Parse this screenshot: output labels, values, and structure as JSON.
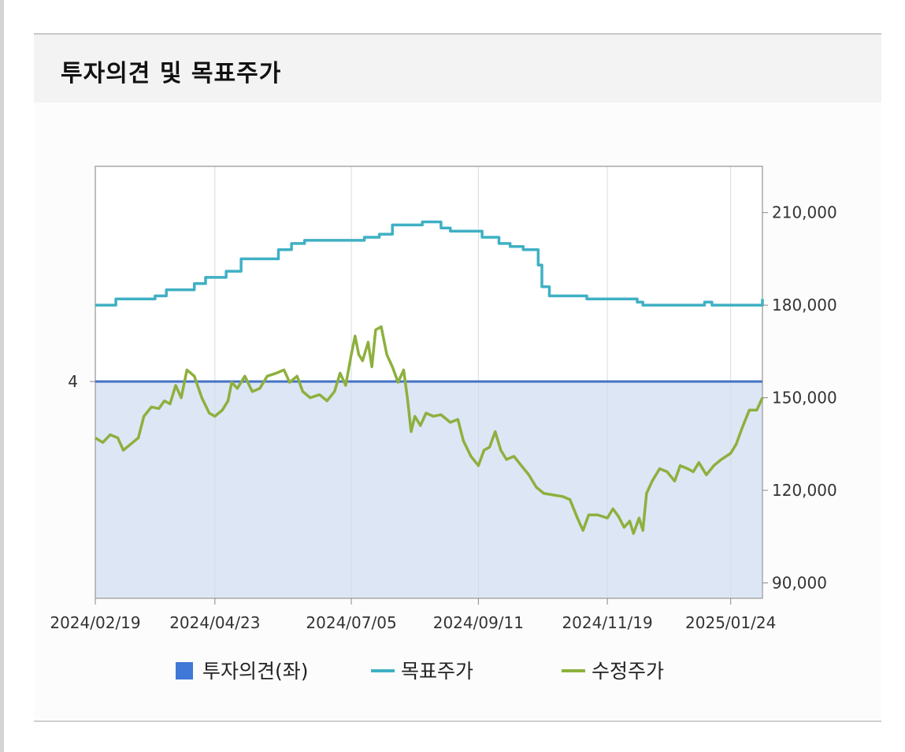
{
  "panel": {
    "title": "투자의견 및 목표주가"
  },
  "colors": {
    "opinion_fill": "#dde6f5",
    "opinion_line": "#4472c4",
    "opinion_legend": "#3f78d6",
    "target": "#3fb0c4",
    "price": "#8db03e",
    "grid": "#d6dbe2",
    "frame": "#a9a9a9"
  },
  "chart_data": {
    "type": "line",
    "x_ticks": [
      "2024/02/19",
      "2024/04/23",
      "2024/07/05",
      "2024/09/11",
      "2024/11/19",
      "2025/01/24"
    ],
    "x_range": [
      "2024/02/19",
      "2025/02/10"
    ],
    "y_left": {
      "ticks": [
        "4"
      ],
      "series": "투자의견(좌)",
      "value": 4
    },
    "y_right": {
      "ticks": [
        "210,000",
        "180,000",
        "150,000",
        "120,000",
        "90,000"
      ],
      "ylim": [
        85000,
        225000
      ]
    },
    "legend": [
      {
        "key": "opinion",
        "label": "투자의견(좌)",
        "icon": "square"
      },
      {
        "key": "target",
        "label": "목표주가",
        "icon": "line"
      },
      {
        "key": "price",
        "label": "수정주가",
        "icon": "line"
      }
    ],
    "series": [
      {
        "name": "목표주가",
        "key": "target",
        "step": true,
        "points": [
          [
            "2024/02/19",
            180000
          ],
          [
            "2024/02/26",
            180000
          ],
          [
            "2024/03/01",
            182000
          ],
          [
            "2024/03/15",
            182000
          ],
          [
            "2024/03/22",
            183000
          ],
          [
            "2024/03/28",
            185000
          ],
          [
            "2024/04/05",
            185000
          ],
          [
            "2024/04/12",
            187000
          ],
          [
            "2024/04/18",
            189000
          ],
          [
            "2024/04/23",
            189000
          ],
          [
            "2024/04/29",
            191000
          ],
          [
            "2024/05/06",
            191000
          ],
          [
            "2024/05/07",
            195000
          ],
          [
            "2024/05/20",
            195000
          ],
          [
            "2024/05/27",
            198000
          ],
          [
            "2024/06/03",
            200000
          ],
          [
            "2024/06/10",
            201000
          ],
          [
            "2024/06/28",
            201000
          ],
          [
            "2024/07/05",
            201000
          ],
          [
            "2024/07/12",
            202000
          ],
          [
            "2024/07/20",
            203000
          ],
          [
            "2024/07/26",
            203000
          ],
          [
            "2024/07/27",
            206000
          ],
          [
            "2024/08/10",
            206000
          ],
          [
            "2024/08/12",
            207000
          ],
          [
            "2024/08/20",
            207000
          ],
          [
            "2024/08/22",
            205000
          ],
          [
            "2024/08/27",
            204000
          ],
          [
            "2024/09/11",
            204000
          ],
          [
            "2024/09/13",
            202000
          ],
          [
            "2024/09/22",
            200000
          ],
          [
            "2024/09/28",
            199000
          ],
          [
            "2024/10/05",
            198000
          ],
          [
            "2024/10/10",
            198000
          ],
          [
            "2024/10/13",
            193000
          ],
          [
            "2024/10/15",
            186000
          ],
          [
            "2024/10/17",
            186000
          ],
          [
            "2024/10/19",
            183000
          ],
          [
            "2024/11/05",
            183000
          ],
          [
            "2024/11/08",
            182000
          ],
          [
            "2024/11/19",
            182000
          ],
          [
            "2024/12/02",
            182000
          ],
          [
            "2024/12/05",
            181000
          ],
          [
            "2024/12/08",
            180000
          ],
          [
            "2024/12/18",
            180000
          ],
          [
            "2024/12/25",
            180000
          ],
          [
            "2025/01/05",
            180000
          ],
          [
            "2025/01/10",
            181000
          ],
          [
            "2025/01/14",
            180000
          ],
          [
            "2025/01/24",
            180000
          ],
          [
            "2025/02/04",
            180000
          ],
          [
            "2025/02/10",
            182000
          ]
        ]
      },
      {
        "name": "수정주가",
        "key": "price",
        "step": false,
        "points": [
          [
            "2024/02/19",
            137000
          ],
          [
            "2024/02/23",
            135500
          ],
          [
            "2024/02/27",
            138000
          ],
          [
            "2024/03/02",
            137000
          ],
          [
            "2024/03/05",
            133000
          ],
          [
            "2024/03/09",
            135000
          ],
          [
            "2024/03/13",
            137000
          ],
          [
            "2024/03/16",
            144000
          ],
          [
            "2024/03/20",
            147000
          ],
          [
            "2024/03/24",
            146500
          ],
          [
            "2024/03/27",
            149000
          ],
          [
            "2024/03/30",
            148000
          ],
          [
            "2024/04/02",
            154000
          ],
          [
            "2024/04/05",
            150000
          ],
          [
            "2024/04/08",
            159000
          ],
          [
            "2024/04/12",
            157000
          ],
          [
            "2024/04/16",
            150000
          ],
          [
            "2024/04/20",
            145000
          ],
          [
            "2024/04/23",
            144000
          ],
          [
            "2024/04/27",
            146000
          ],
          [
            "2024/04/30",
            149000
          ],
          [
            "2024/05/02",
            155000
          ],
          [
            "2024/05/05",
            153000
          ],
          [
            "2024/05/09",
            157000
          ],
          [
            "2024/05/13",
            152000
          ],
          [
            "2024/05/17",
            153000
          ],
          [
            "2024/05/21",
            157000
          ],
          [
            "2024/05/26",
            158000
          ],
          [
            "2024/05/30",
            159000
          ],
          [
            "2024/06/02",
            155000
          ],
          [
            "2024/06/06",
            157000
          ],
          [
            "2024/06/09",
            152000
          ],
          [
            "2024/06/13",
            150000
          ],
          [
            "2024/06/18",
            151000
          ],
          [
            "2024/06/22",
            149000
          ],
          [
            "2024/06/26",
            152000
          ],
          [
            "2024/06/29",
            158000
          ],
          [
            "2024/07/02",
            154000
          ],
          [
            "2024/07/05",
            164000
          ],
          [
            "2024/07/07",
            170000
          ],
          [
            "2024/07/09",
            164000
          ],
          [
            "2024/07/11",
            162000
          ],
          [
            "2024/07/14",
            168000
          ],
          [
            "2024/07/16",
            160000
          ],
          [
            "2024/07/18",
            172000
          ],
          [
            "2024/07/21",
            173000
          ],
          [
            "2024/07/24",
            164000
          ],
          [
            "2024/07/27",
            160000
          ],
          [
            "2024/07/30",
            155000
          ],
          [
            "2024/08/02",
            159000
          ],
          [
            "2024/08/04",
            150000
          ],
          [
            "2024/08/06",
            139000
          ],
          [
            "2024/08/08",
            144000
          ],
          [
            "2024/08/11",
            141000
          ],
          [
            "2024/08/14",
            145000
          ],
          [
            "2024/08/18",
            144000
          ],
          [
            "2024/08/22",
            144500
          ],
          [
            "2024/08/27",
            142000
          ],
          [
            "2024/08/31",
            143000
          ],
          [
            "2024/09/03",
            136000
          ],
          [
            "2024/09/07",
            131000
          ],
          [
            "2024/09/11",
            128000
          ],
          [
            "2024/09/14",
            133000
          ],
          [
            "2024/09/17",
            134000
          ],
          [
            "2024/09/20",
            139000
          ],
          [
            "2024/09/23",
            133000
          ],
          [
            "2024/09/26",
            130000
          ],
          [
            "2024/09/30",
            131000
          ],
          [
            "2024/10/04",
            128000
          ],
          [
            "2024/10/08",
            125000
          ],
          [
            "2024/10/12",
            121000
          ],
          [
            "2024/10/16",
            119000
          ],
          [
            "2024/10/21",
            118500
          ],
          [
            "2024/10/26",
            118000
          ],
          [
            "2024/10/30",
            117000
          ],
          [
            "2024/11/03",
            111000
          ],
          [
            "2024/11/06",
            107000
          ],
          [
            "2024/11/09",
            112000
          ],
          [
            "2024/11/14",
            112000
          ],
          [
            "2024/11/19",
            111000
          ],
          [
            "2024/11/22",
            114000
          ],
          [
            "2024/11/25",
            111500
          ],
          [
            "2024/11/28",
            108000
          ],
          [
            "2024/12/01",
            110000
          ],
          [
            "2024/12/03",
            106000
          ],
          [
            "2024/12/06",
            111000
          ],
          [
            "2024/12/08",
            107000
          ],
          [
            "2024/12/10",
            119000
          ],
          [
            "2024/12/13",
            123000
          ],
          [
            "2024/12/17",
            127000
          ],
          [
            "2024/12/21",
            126000
          ],
          [
            "2024/12/25",
            123000
          ],
          [
            "2024/12/28",
            128000
          ],
          [
            "2025/01/01",
            127000
          ],
          [
            "2025/01/04",
            126000
          ],
          [
            "2025/01/07",
            129000
          ],
          [
            "2025/01/11",
            125000
          ],
          [
            "2025/01/15",
            128000
          ],
          [
            "2025/01/19",
            130000
          ],
          [
            "2025/01/24",
            132000
          ],
          [
            "2025/01/27",
            135000
          ],
          [
            "2025/01/30",
            140000
          ],
          [
            "2025/02/03",
            146000
          ],
          [
            "2025/02/07",
            146000
          ],
          [
            "2025/02/10",
            150000
          ]
        ]
      }
    ]
  }
}
